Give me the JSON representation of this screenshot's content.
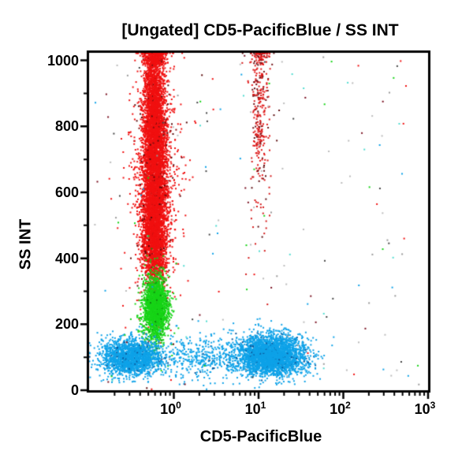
{
  "chart_data": {
    "type": "scatter",
    "title": "[Ungated] CD5-PacificBlue / SS INT",
    "xlabel": "CD5-PacificBlue",
    "ylabel": "SS INT",
    "x_scale": "log",
    "x_range_log10": [
      -1,
      3
    ],
    "x_major_ticks": [
      {
        "base": "10",
        "exp": "0",
        "value": 1
      },
      {
        "base": "10",
        "exp": "1",
        "value": 10
      },
      {
        "base": "10",
        "exp": "2",
        "value": 100
      },
      {
        "base": "10",
        "exp": "3",
        "value": 1000
      }
    ],
    "y_scale": "linear",
    "y_range": [
      0,
      1023
    ],
    "y_major_ticks": [
      "0",
      "200",
      "400",
      "600",
      "800",
      "1000"
    ],
    "y_minor_step": 100,
    "grid": false,
    "legend": "none",
    "frame_color": "#000000",
    "background_color": "#ffffff",
    "populations": [
      {
        "name": "cd5neg-high-ss-core",
        "color": "#f01010",
        "dark_color": "#8a1010",
        "dark_every": 40,
        "n": 3600,
        "x_mean": -0.225,
        "x_sd": 0.075,
        "y_mean": 590,
        "y_sd": 125
      },
      {
        "name": "cd5neg-high-ss-upper",
        "color": "#f01010",
        "dark_color": "#8a1010",
        "dark_every": 45,
        "n": 2400,
        "x_mean": -0.23,
        "x_sd": 0.062,
        "y_mean": 840,
        "y_sd": 105
      },
      {
        "name": "cd5neg-high-ss-lower",
        "color": "#f01010",
        "dark_color": "#8a1010",
        "dark_every": 50,
        "n": 800,
        "x_mean": -0.22,
        "x_sd": 0.07,
        "y_mean": 430,
        "y_sd": 55
      },
      {
        "name": "cd5neg-high-ss-halo",
        "color": "#f01010",
        "dark_color": "#5a0a0a",
        "dark_every": 12,
        "n": 900,
        "x_mean": -0.225,
        "x_sd": 0.15,
        "y_mean": 640,
        "y_sd": 210
      },
      {
        "name": "cd5neg-pileup-top",
        "color": "#f01010",
        "dark_color": "#8a1010",
        "dark_every": 30,
        "n": 280,
        "x_mean": -0.225,
        "x_sd": 0.06,
        "y_dist": "uniform",
        "y_min": 985,
        "y_max": 1022
      },
      {
        "name": "cd5pos-high-ss",
        "color": "#e01616",
        "dark_color": "#701014",
        "dark_every": 4,
        "n": 230,
        "x_mean": 1.02,
        "x_sd": 0.055,
        "y_mean": 880,
        "y_sd": 115
      },
      {
        "name": "cd5pos-high-ss-halo",
        "color": "#d41a1a",
        "dark_color": "#5c0d10",
        "dark_every": 5,
        "n": 90,
        "x_mean": 1.02,
        "x_sd": 0.09,
        "y_mean": 740,
        "y_sd": 190
      },
      {
        "name": "cd5pos-pileup-top",
        "color": "#e01616",
        "dark_color": "#701014",
        "dark_every": 5,
        "n": 45,
        "x_mean": 1.02,
        "x_sd": 0.05,
        "y_dist": "uniform",
        "y_min": 985,
        "y_max": 1022
      },
      {
        "name": "lymphocytes-green",
        "color": "#17d417",
        "dark_color": "#0c8a0c",
        "dark_every": 35,
        "n": 1700,
        "x_mean": -0.215,
        "x_sd": 0.07,
        "y_mean": 248,
        "y_sd": 46
      },
      {
        "name": "lymphocytes-green-halo",
        "color": "#17d417",
        "dark_color": "#0c8a0c",
        "dark_every": 20,
        "n": 260,
        "x_mean": -0.215,
        "x_sd": 0.115,
        "y_mean": 250,
        "y_sd": 62
      },
      {
        "name": "debris-left-blue",
        "color": "#0ea2e8",
        "dark_color": "#0b5a9e",
        "dark_every": 25,
        "n": 1900,
        "x_mean": -0.5,
        "x_sd": 0.17,
        "y_mean": 100,
        "y_sd": 28
      },
      {
        "name": "debris-bridge-blue",
        "color": "#0ea2e8",
        "dark_color": "#0b5a9e",
        "dark_every": 30,
        "n": 450,
        "x_mean": 0.35,
        "x_sd": 0.33,
        "y_mean": 100,
        "y_sd": 33
      },
      {
        "name": "cd5pos-low-ss-blue",
        "color": "#0ea2e8",
        "dark_color": "#0b5a9e",
        "dark_every": 25,
        "n": 3200,
        "x_mean": 1.14,
        "x_sd": 0.2,
        "y_mean": 105,
        "y_sd": 30
      }
    ],
    "noise": {
      "n": 180,
      "colors": [
        "#bbbbbb",
        "#999999",
        "#f01010",
        "#0ea2e8",
        "#50dcd0",
        "#17d417",
        "#444444",
        "#7a1020",
        "#bbbbbb"
      ],
      "x_min": -0.97,
      "x_max": 2.9,
      "y_min": 8,
      "y_max": 1015
    }
  }
}
